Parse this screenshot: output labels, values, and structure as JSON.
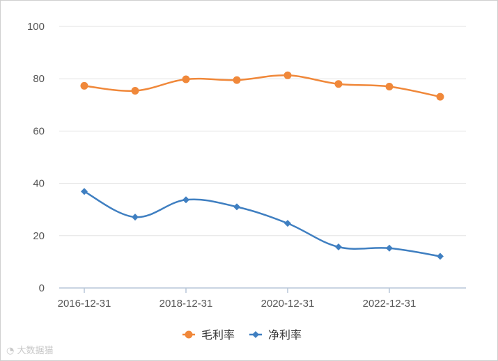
{
  "chart_data": {
    "type": "line",
    "x": [
      "2016-12-31",
      "2017-12-31",
      "2018-12-31",
      "2019-12-31",
      "2020-12-31",
      "2021-12-31",
      "2022-12-31",
      "2023-12-31"
    ],
    "x_tick_labels": [
      "2016-12-31",
      "2018-12-31",
      "2020-12-31",
      "2022-12-31"
    ],
    "y_ticks": [
      0,
      20,
      40,
      60,
      80,
      100
    ],
    "ylim": [
      0,
      100
    ],
    "grid": true,
    "legend_position": "bottom",
    "series": [
      {
        "name": "毛利率",
        "color": "#f0883a",
        "marker": "circle",
        "values": [
          77.3,
          75.4,
          79.8,
          79.5,
          81.3,
          78.0,
          77.0,
          73.1
        ]
      },
      {
        "name": "净利率",
        "color": "#3f7fc1",
        "marker": "diamond",
        "values": [
          36.9,
          27.1,
          33.7,
          31.0,
          24.7,
          15.7,
          15.2,
          12.1
        ]
      }
    ]
  },
  "watermark": "大数据猫"
}
